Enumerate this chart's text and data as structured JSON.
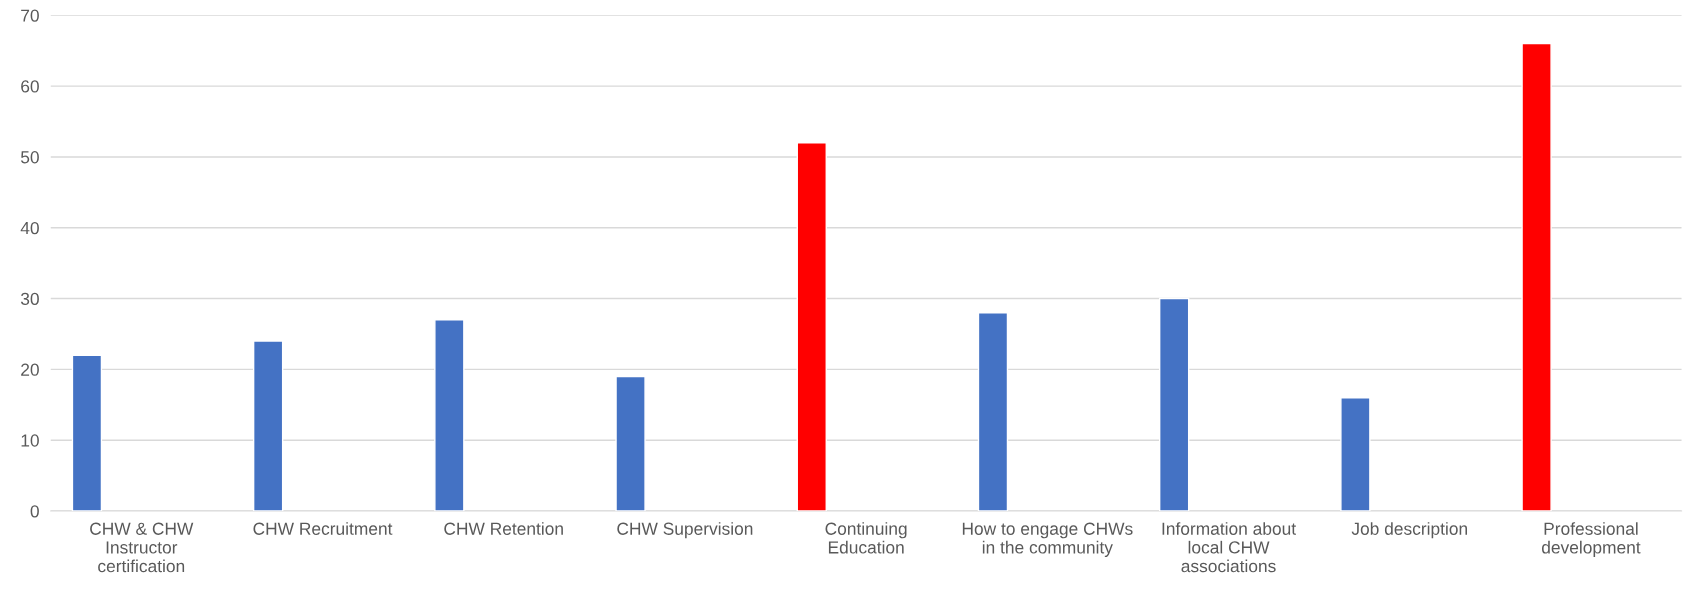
{
  "chart_data": {
    "type": "bar",
    "categories": [
      "CHW & CHW Instructor certification",
      "CHW Recruitment",
      "CHW Retention",
      "CHW Supervision",
      "Continuing Education",
      "How to engage CHWs in the community",
      "Information about local CHW associations",
      "Job description",
      "Professional development"
    ],
    "values": [
      22,
      24,
      27,
      19,
      52,
      28,
      30,
      16,
      66
    ],
    "colors": [
      "#4472c4",
      "#4472c4",
      "#4472c4",
      "#4472c4",
      "#ff0000",
      "#4472c4",
      "#4472c4",
      "#4472c4",
      "#ff0000"
    ],
    "ylim": [
      0,
      70
    ],
    "yticks": [
      0,
      10,
      20,
      30,
      40,
      50,
      60,
      70
    ],
    "grid": "y",
    "legend": false
  }
}
